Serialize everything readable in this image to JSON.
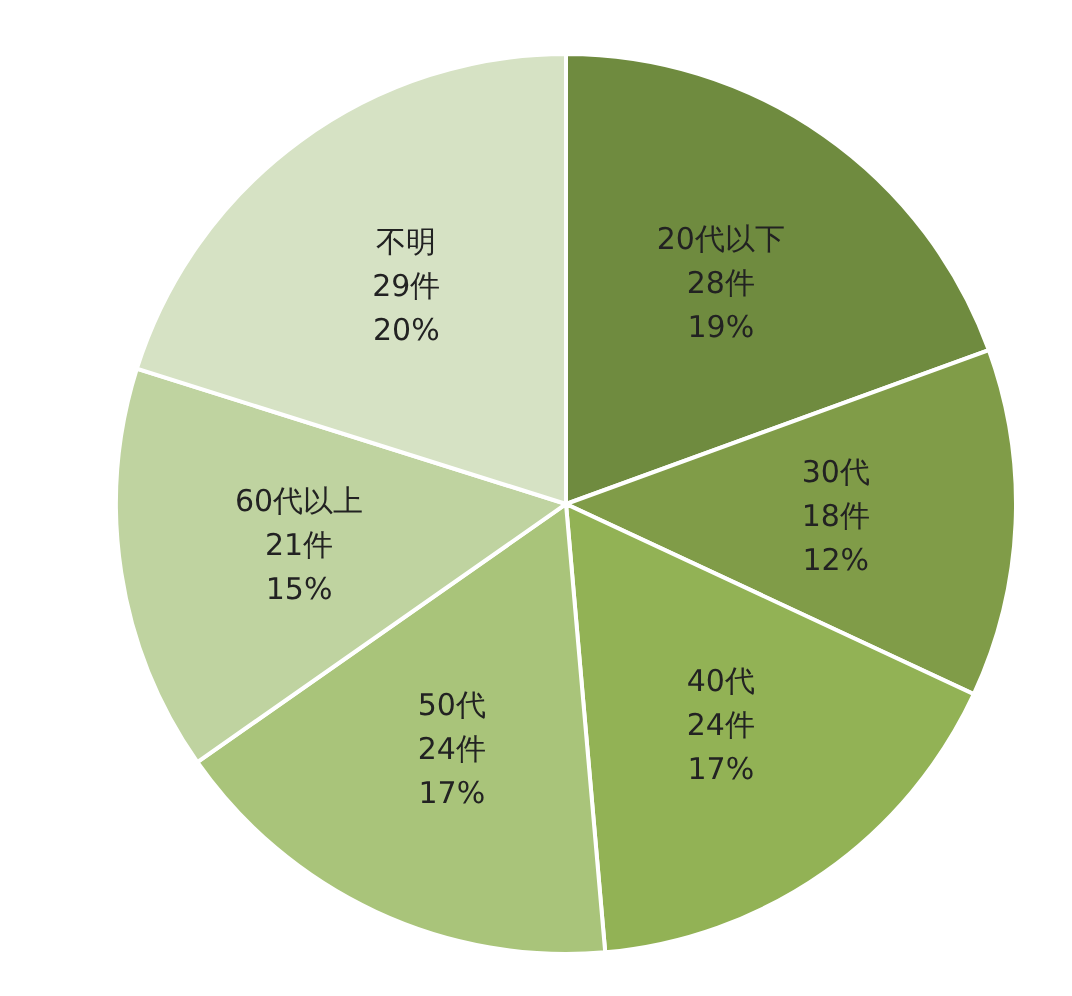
{
  "chart_data": {
    "type": "pie",
    "categories": [
      "20代以下",
      "30代",
      "40代",
      "50代",
      "60代以上",
      "不明"
    ],
    "values": [
      28,
      18,
      24,
      24,
      21,
      29
    ],
    "value_labels": [
      "28件\n19%",
      "18件\n12%",
      "24件\n17%",
      "24件\n17%",
      "21件\n15%",
      "29件\n20%"
    ],
    "colors": [
      "#6f8b3f",
      "#809c48",
      "#92b255",
      "#a9c47a",
      "#bfd3a0",
      "#d6e2c4"
    ],
    "legend": false
  }
}
